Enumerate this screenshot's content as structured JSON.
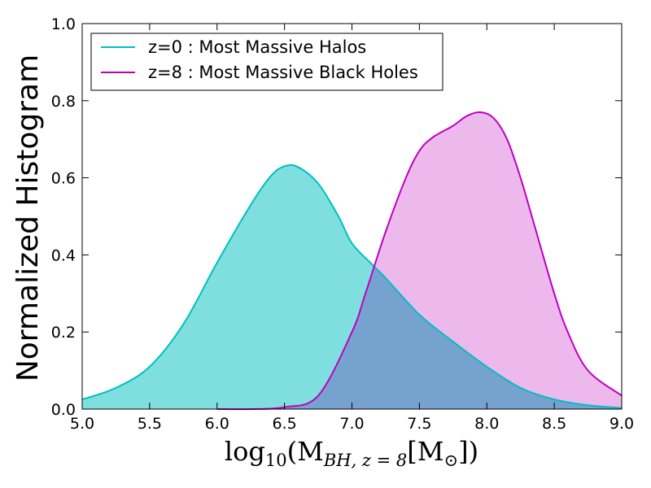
{
  "chart_data": {
    "type": "area",
    "xlabel": {
      "pre": "log",
      "sub": "10",
      "mid": "(M",
      "sub2": "BH, z = 8",
      "mid2": "[M",
      "sub3": "⊙",
      "post": "])"
    },
    "ylabel": "Normalized Histogram",
    "xlim": [
      5.0,
      9.0
    ],
    "ylim": [
      0.0,
      1.0
    ],
    "xticks": [
      "5.0",
      "5.5",
      "6.0",
      "6.5",
      "7.0",
      "7.5",
      "8.0",
      "8.5",
      "9.0"
    ],
    "yticks": [
      "0.0",
      "0.2",
      "0.4",
      "0.6",
      "0.8",
      "1.0"
    ],
    "legend_position": "top-left",
    "series": [
      {
        "name": "z=0 : Most Massive Halos",
        "color": "#00bfbf",
        "fill": "#7fdfdf",
        "x": [
          5.0,
          5.25,
          5.5,
          5.75,
          6.0,
          6.25,
          6.4,
          6.5,
          6.6,
          6.75,
          6.9,
          7.0,
          7.15,
          7.25,
          7.5,
          7.75,
          8.0,
          8.25,
          8.5,
          8.75,
          9.0
        ],
        "y": [
          0.025,
          0.055,
          0.11,
          0.22,
          0.38,
          0.53,
          0.605,
          0.63,
          0.628,
          0.585,
          0.5,
          0.43,
          0.375,
          0.34,
          0.245,
          0.175,
          0.11,
          0.055,
          0.025,
          0.01,
          0.003
        ]
      },
      {
        "name": "z=8 : Most Massive Black Holes",
        "color": "#bf00bf",
        "fill": "#df7fdf",
        "x": [
          6.0,
          6.25,
          6.5,
          6.75,
          7.0,
          7.1,
          7.25,
          7.4,
          7.5,
          7.6,
          7.75,
          7.85,
          7.95,
          8.05,
          8.15,
          8.25,
          8.35,
          8.5,
          8.6,
          8.75,
          9.0
        ],
        "y": [
          0.0,
          0.0,
          0.005,
          0.035,
          0.2,
          0.3,
          0.46,
          0.6,
          0.67,
          0.705,
          0.735,
          0.76,
          0.77,
          0.755,
          0.7,
          0.6,
          0.48,
          0.3,
          0.2,
          0.1,
          0.035
        ]
      }
    ]
  }
}
